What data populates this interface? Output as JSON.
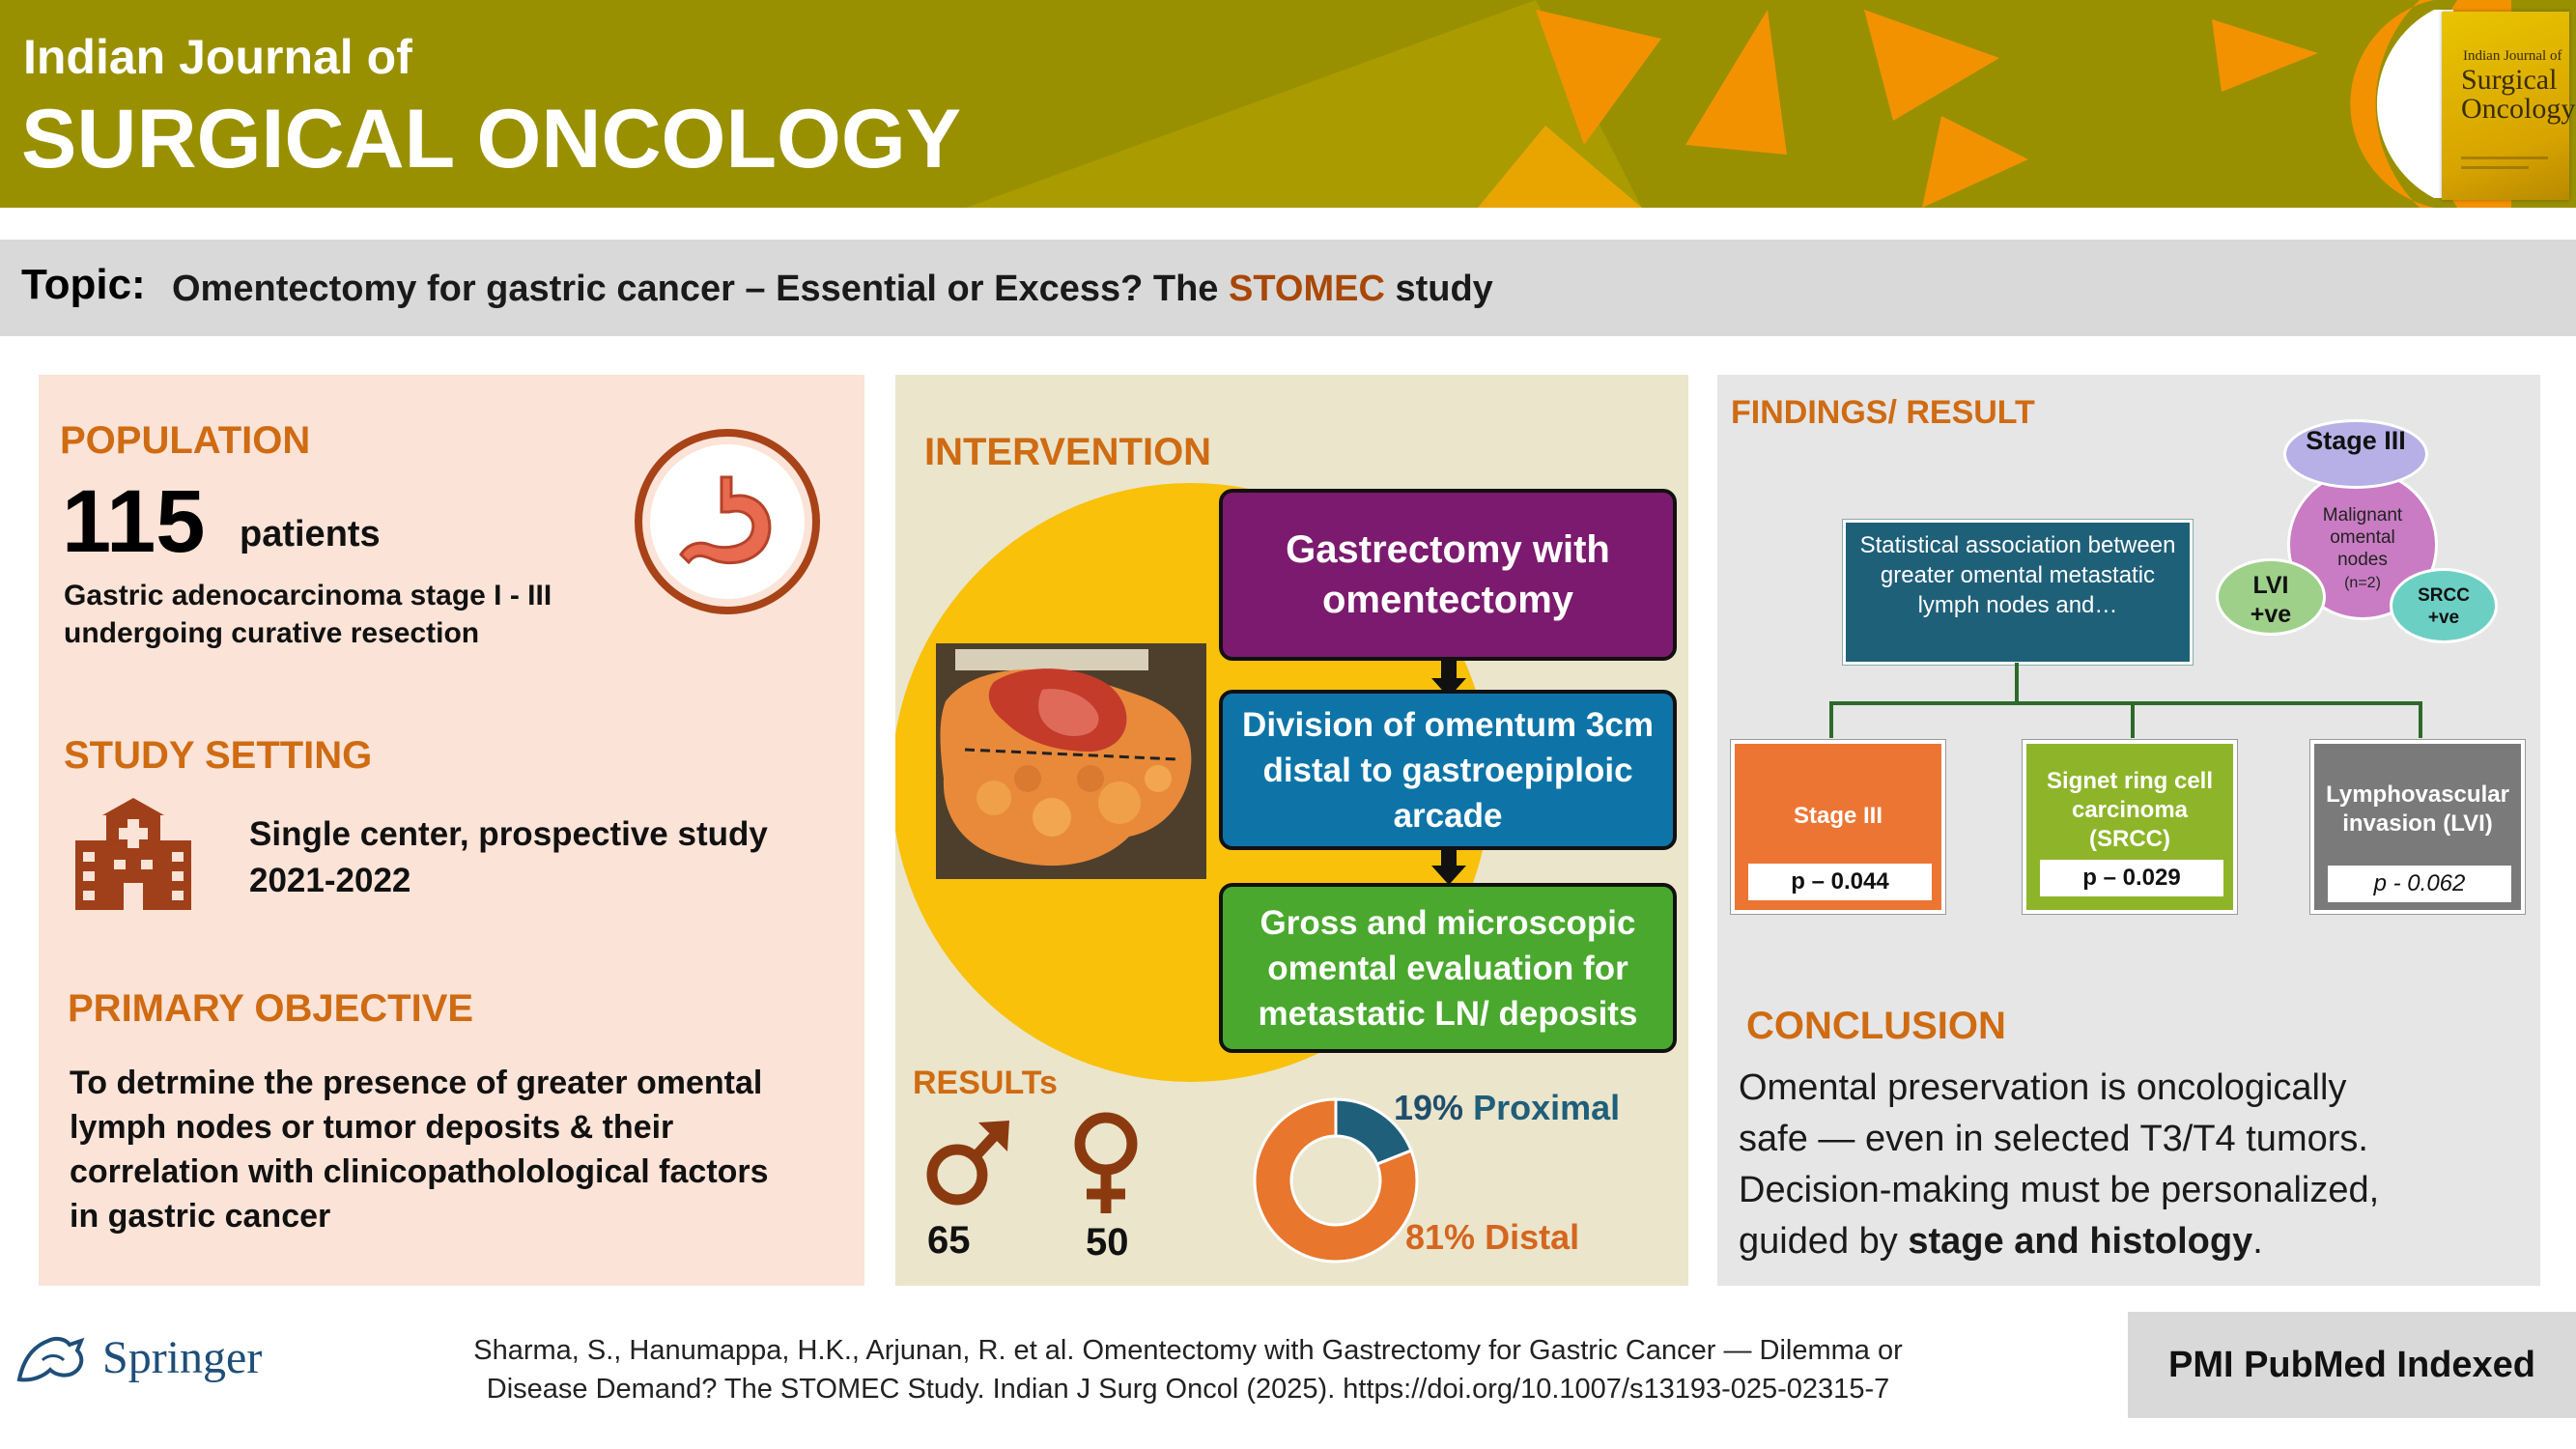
{
  "header": {
    "subtitle": "Indian Journal of",
    "title": "SURGICAL ONCOLOGY",
    "cover": {
      "line1": "Indian Journal of",
      "line2a": "Surgical",
      "line2b": "Oncology"
    },
    "colors": {
      "band": "#999000",
      "accent": "#f29200"
    }
  },
  "topic": {
    "label": "Topic:",
    "text_before": "Omentectomy for gastric cancer – Essential or Excess? The ",
    "highlight": "STOMEC",
    "text_after": " study"
  },
  "population": {
    "heading": "POPULATION",
    "count": "115",
    "unit": "patients",
    "description_line1": "Gastric adenocarcinoma stage I - III",
    "description_line2": "undergoing curative resection",
    "icon": "stomach-icon"
  },
  "setting": {
    "heading": "STUDY SETTING",
    "line1": "Single center,  prospective study",
    "line2": "2021-2022",
    "icon": "hospital-icon"
  },
  "objective": {
    "heading": "PRIMARY OBJECTIVE",
    "line1": "To detrmine the presence of greater omental",
    "line2": "lymph nodes or tumor deposits &  their",
    "line3": "correlation with clinicopatholological factors",
    "line4": "in gastric cancer"
  },
  "intervention": {
    "heading": "INTERVENTION",
    "step1": "Gastrectomy with omentectomy",
    "step2": "Division of omentum 3cm distal to gastroepiploic arcade",
    "step3": "Gross and microscopic omental evaluation for metastatic LN/ deposits",
    "colors": {
      "step1": "#7b1a6e",
      "step2": "#0e74a8",
      "step3": "#4aa82e"
    }
  },
  "results": {
    "heading": "RESULTs",
    "male_count": "65",
    "female_count": "50",
    "proximal_pct": "19%",
    "proximal_label": "Proximal",
    "distal_pct": "81%",
    "distal_label": "Distal"
  },
  "chart_data": {
    "type": "pie",
    "categories": [
      "Proximal",
      "Distal"
    ],
    "values": [
      19,
      81
    ],
    "colors": [
      "#1f5f7a",
      "#e8762d"
    ]
  },
  "findings": {
    "heading": "FINDINGS/ RESULT",
    "association": "Statistical association between greater omental metastatic lymph nodes and…",
    "venn": {
      "stage": "Stage III",
      "center": "Malignant omental nodes",
      "center_n": "(n=2)",
      "lvi": "LVI +ve",
      "srcc": "SRCC +ve"
    },
    "boxes": [
      {
        "label": "Stage III",
        "p": "p – 0.044",
        "color": "#ed7534"
      },
      {
        "label": "Signet ring cell carcinoma (SRCC)",
        "p": "p – 0.029",
        "color": "#8eb52a"
      },
      {
        "label": "Lymphovascular invasion (LVI)",
        "p": "p - 0.062",
        "color": "#7a7a7a"
      }
    ]
  },
  "conclusion": {
    "heading": "CONCLUSION",
    "line1": "Omental preservation is oncologically",
    "line2": "safe — even in selected T3/T4 tumors.",
    "line3": "Decision-making must be personalized,",
    "line4_prefix": "guided by ",
    "line4_bold": "stage and histology",
    "line4_suffix": "."
  },
  "footer": {
    "publisher": "Springer",
    "citation_line1": "Sharma, S., Hanumappa, H.K., Arjunan, R. et al. Omentectomy with Gastrectomy for Gastric Cancer — Dilemma or",
    "citation_line2": "Disease Demand? The STOMEC Study. Indian J Surg Oncol (2025). https://doi.org/10.1007/s13193-025-02315-7",
    "badge": "PMI PubMed Indexed"
  }
}
